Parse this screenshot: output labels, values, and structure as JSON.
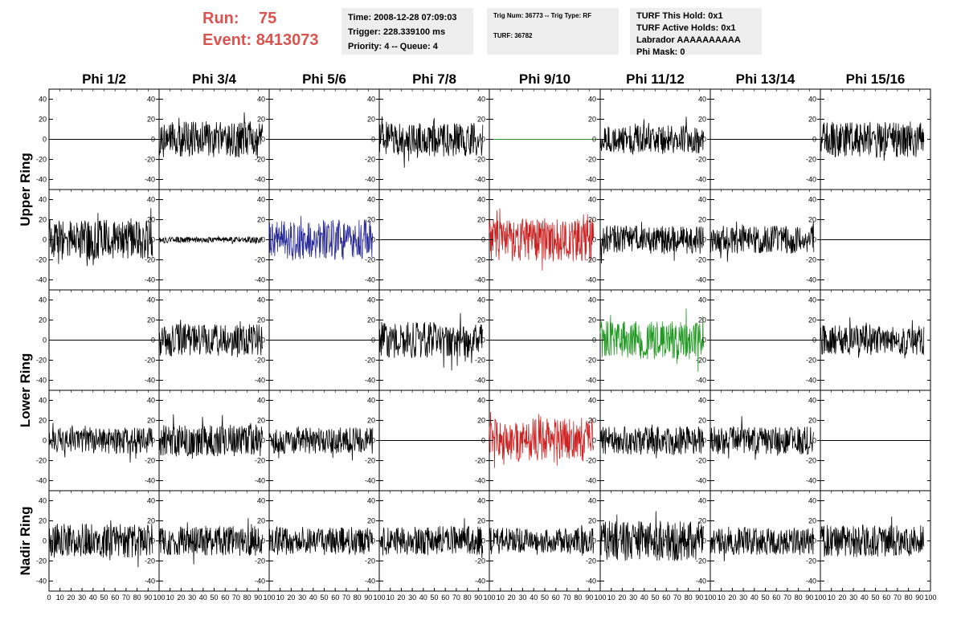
{
  "header": {
    "run_label": "Run:",
    "run_value": "75",
    "event_label": "Event:",
    "event_value": "8413073",
    "time_line": "Time: 2008-12-28 07:09:03",
    "trigger_line": "Trigger: 228.339100 ms",
    "priority_line": "Priority: 4 -- Queue: 4",
    "trig_num_line": "Trig Num: 36773 -- Trig Type: RF",
    "turf_line": "TURF: 36782",
    "turf_this_hold": "TURF This Hold: 0x1",
    "turf_active_holds": "TURF Active Holds: 0x1",
    "labrador": "Labrador AAAAAAAAAA",
    "phi_mask": "Phi Mask: 0"
  },
  "chart_data": {
    "type": "line",
    "phi_columns": [
      "Phi 1/2",
      "Phi 3/4",
      "Phi 5/6",
      "Phi 7/8",
      "Phi 9/10",
      "Phi 11/12",
      "Phi 13/14",
      "Phi 15/16"
    ],
    "ring_labels": [
      "Upper Ring",
      "Lower Ring",
      "Nadir Ring"
    ],
    "ylim": [
      -50,
      50
    ],
    "yticks": [
      -40,
      -20,
      0,
      20,
      40
    ],
    "xlim": [
      0,
      100
    ],
    "xticks": [
      0,
      10,
      20,
      30,
      40,
      50,
      60,
      70,
      80,
      90,
      100
    ],
    "xtick_labels_first": [
      "0",
      "10",
      "20",
      "30",
      "40",
      "50",
      "60",
      "70",
      "80",
      "90",
      "100"
    ],
    "xtick_labels_other": [
      "",
      "10",
      "20",
      "30",
      "40",
      "50",
      "60",
      "70",
      "80",
      "90",
      "100"
    ],
    "colors": {
      "normal": "#000000",
      "blue": "#2a2a9a",
      "red": "#cc2222",
      "green": "#229922",
      "flat_green": "#229922"
    },
    "rows": [
      {
        "panels": [
          {
            "state": "flat",
            "amp": 0,
            "color": "#000000"
          },
          {
            "state": "noise",
            "amp": 18,
            "color": "#000000"
          },
          {
            "state": "flat",
            "amp": 0,
            "color": "#000000"
          },
          {
            "state": "noise",
            "amp": 17,
            "color": "#000000"
          },
          {
            "state": "flat",
            "amp": 0,
            "color": "#229922"
          },
          {
            "state": "noise",
            "amp": 14,
            "color": "#000000"
          },
          {
            "state": "flat",
            "amp": 0,
            "color": "#000000"
          },
          {
            "state": "noise",
            "amp": 18,
            "color": "#000000"
          }
        ]
      },
      {
        "panels": [
          {
            "state": "noise",
            "amp": 20,
            "color": "#000000"
          },
          {
            "state": "noise",
            "amp": 3,
            "color": "#000000"
          },
          {
            "state": "noise",
            "amp": 20,
            "color": "#2a2a9a"
          },
          {
            "state": "flat",
            "amp": 0,
            "color": "#000000"
          },
          {
            "state": "noise",
            "amp": 22,
            "color": "#cc2222"
          },
          {
            "state": "noise",
            "amp": 14,
            "color": "#000000"
          },
          {
            "state": "noise",
            "amp": 14,
            "color": "#000000"
          },
          {
            "state": "flat",
            "amp": 0,
            "color": "#000000"
          }
        ]
      },
      {
        "panels": [
          {
            "state": "flat",
            "amp": 0,
            "color": "#000000"
          },
          {
            "state": "noise",
            "amp": 16,
            "color": "#000000"
          },
          {
            "state": "flat",
            "amp": 0,
            "color": "#000000"
          },
          {
            "state": "noise",
            "amp": 18,
            "color": "#000000"
          },
          {
            "state": "flat",
            "amp": 0,
            "color": "#000000"
          },
          {
            "state": "noise",
            "amp": 19,
            "color": "#229922"
          },
          {
            "state": "flat",
            "amp": 0,
            "color": "#000000"
          },
          {
            "state": "noise",
            "amp": 15,
            "color": "#000000"
          }
        ]
      },
      {
        "panels": [
          {
            "state": "noise",
            "amp": 13,
            "color": "#000000"
          },
          {
            "state": "noise",
            "amp": 16,
            "color": "#000000"
          },
          {
            "state": "noise",
            "amp": 13,
            "color": "#000000"
          },
          {
            "state": "flat",
            "amp": 0,
            "color": "#000000"
          },
          {
            "state": "noise",
            "amp": 22,
            "color": "#cc2222"
          },
          {
            "state": "noise",
            "amp": 14,
            "color": "#000000"
          },
          {
            "state": "noise",
            "amp": 14,
            "color": "#000000"
          },
          {
            "state": "flat",
            "amp": 0,
            "color": "#000000"
          }
        ]
      },
      {
        "panels": [
          {
            "state": "noise",
            "amp": 17,
            "color": "#000000"
          },
          {
            "state": "noise",
            "amp": 15,
            "color": "#000000"
          },
          {
            "state": "noise",
            "amp": 14,
            "color": "#000000"
          },
          {
            "state": "noise",
            "amp": 15,
            "color": "#000000"
          },
          {
            "state": "noise",
            "amp": 13,
            "color": "#000000"
          },
          {
            "state": "noise",
            "amp": 20,
            "color": "#000000"
          },
          {
            "state": "noise",
            "amp": 14,
            "color": "#000000"
          },
          {
            "state": "noise",
            "amp": 16,
            "color": "#000000"
          }
        ]
      }
    ]
  }
}
